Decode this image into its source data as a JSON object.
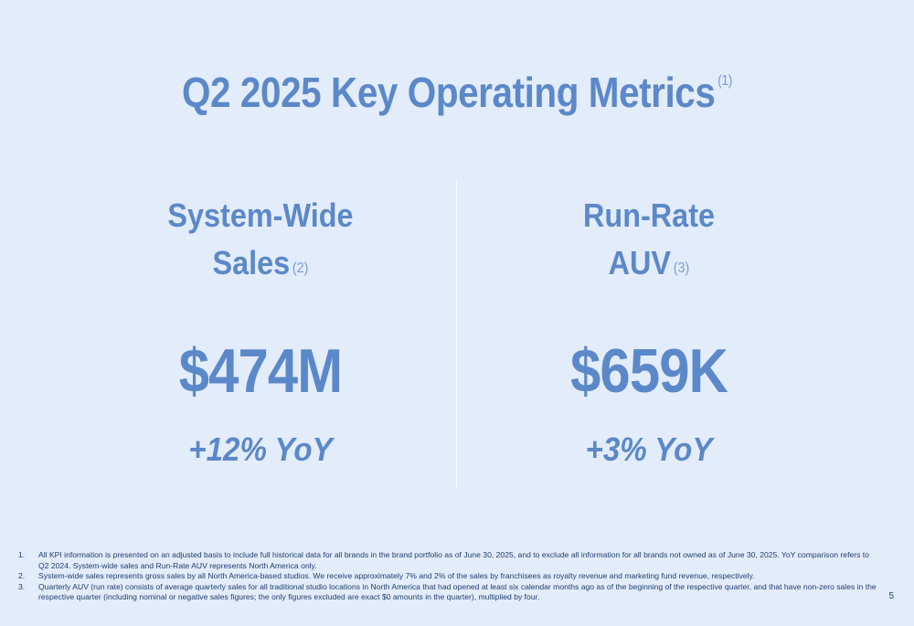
{
  "title": {
    "text": "Q2 2025 Key Operating Metrics",
    "footnote_ref": "(1)"
  },
  "metrics": [
    {
      "label_line1": "System-Wide",
      "label_line2": "Sales",
      "footnote_ref": "(2)",
      "value": "$474M",
      "change": "+12% YoY"
    },
    {
      "label_line1": "Run-Rate",
      "label_line2": "AUV",
      "footnote_ref": "(3)",
      "value": "$659K",
      "change": "+3% YoY"
    }
  ],
  "footnotes": [
    {
      "num": "1.",
      "text": "All KPI information is presented on an adjusted basis to include full historical data for all brands in the brand portfolio as of June 30, 2025, and to exclude all information for all brands not owned as of June 30, 2025. YoY comparison refers to Q2 2024. System-wide sales and Run-Rate AUV represents North America only."
    },
    {
      "num": "2.",
      "text": "System-wide sales represents gross sales by all North America-based studios. We receive approximately 7% and 2% of the sales by franchisees as royalty revenue and marketing fund revenue, respectively."
    },
    {
      "num": "3.",
      "text": "Quarterly AUV (run rate) consists of average quarterly sales for all traditional studio locations in North America that had opened at least six calendar months ago as of the beginning of the respective quarter, and that have non-zero sales in the respective quarter (including nominal or negative sales figures; the only figures excluded are exact $0 amounts in the quarter), multiplied by four."
    }
  ],
  "page_number": "5",
  "colors": {
    "background": "#e3ecfa",
    "accent": "#5b88c9",
    "footnote_text": "#1f3d6e"
  }
}
